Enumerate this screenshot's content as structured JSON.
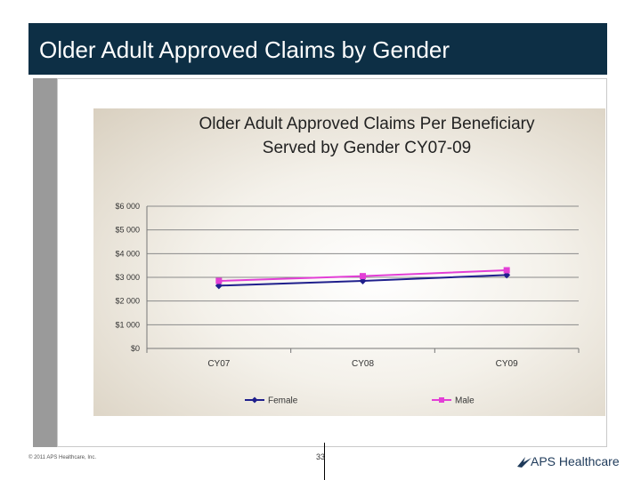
{
  "slide": {
    "title": "Older Adult Approved Claims by Gender",
    "footer_copyright": "© 2011 APS Healthcare, Inc.",
    "page_number": "33",
    "logo_text": "APS Healthcare",
    "logo_icon": "swoosh-arrow-icon"
  },
  "chart_data": {
    "type": "line",
    "title": "Older Adult Approved Claims Per Beneficiary Served by Gender CY07-09",
    "title_lines": [
      "Older Adult Approved Claims Per Beneficiary",
      "Served by Gender CY07-09"
    ],
    "categories": [
      "CY07",
      "CY08",
      "CY09"
    ],
    "ylim": [
      0,
      6000
    ],
    "yticks": [
      0,
      1000,
      2000,
      3000,
      4000,
      5000,
      6000
    ],
    "ytick_labels": [
      "$0",
      "$1 000",
      "$2 000",
      "$3 000",
      "$4 000",
      "$5 000",
      "$6 000"
    ],
    "grid": true,
    "legend_position": "bottom",
    "series": [
      {
        "name": "Female",
        "values": [
          2650,
          2850,
          3100
        ],
        "color": "#1f1f8c",
        "marker": "diamond"
      },
      {
        "name": "Male",
        "values": [
          2850,
          3050,
          3300
        ],
        "color": "#e33fd6",
        "marker": "square"
      }
    ]
  }
}
